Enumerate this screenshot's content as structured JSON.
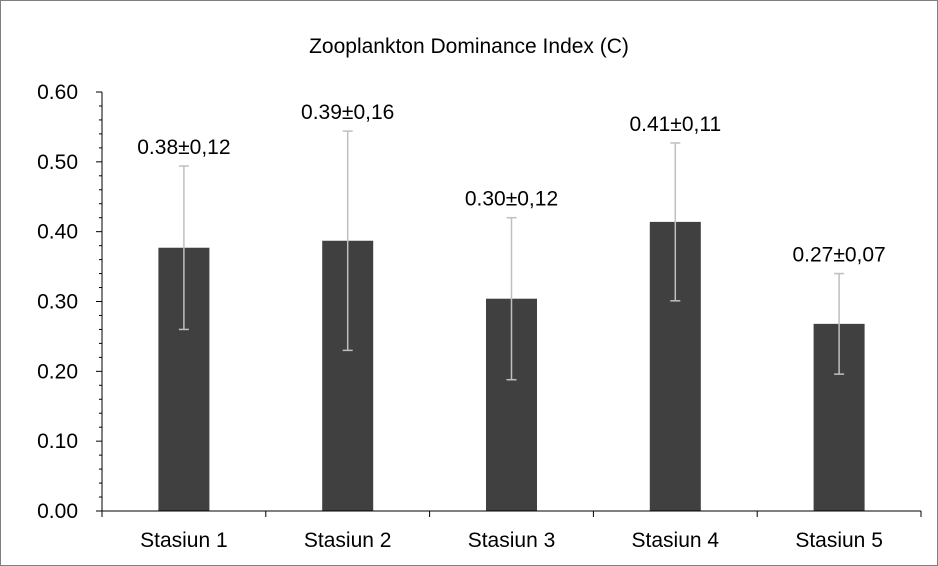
{
  "chart_data": {
    "type": "bar",
    "title": "Zooplankton Dominance Index (C)",
    "xlabel": "",
    "ylabel": "",
    "categories": [
      "Stasiun 1",
      "Stasiun 2",
      "Stasiun 3",
      "Stasiun 4",
      "Stasiun 5"
    ],
    "values": [
      0.377,
      0.387,
      0.304,
      0.414,
      0.268
    ],
    "error": [
      0.117,
      0.157,
      0.116,
      0.113,
      0.072
    ],
    "data_labels": [
      "0.38±0,12",
      "0.39±0,16",
      "0.30±0,12",
      "0.41±0,11",
      "0.27±0,07"
    ],
    "ylim": [
      0,
      0.6
    ],
    "yticks": [
      "0.00",
      "0.10",
      "0.20",
      "0.30",
      "0.40",
      "0.50",
      "0.60"
    ],
    "grid": false,
    "legend": "none",
    "colors": {
      "bar": "#404040",
      "error_bar": "#bfbfbf",
      "axis": "#000000",
      "frame": "#7f7f7f"
    }
  }
}
